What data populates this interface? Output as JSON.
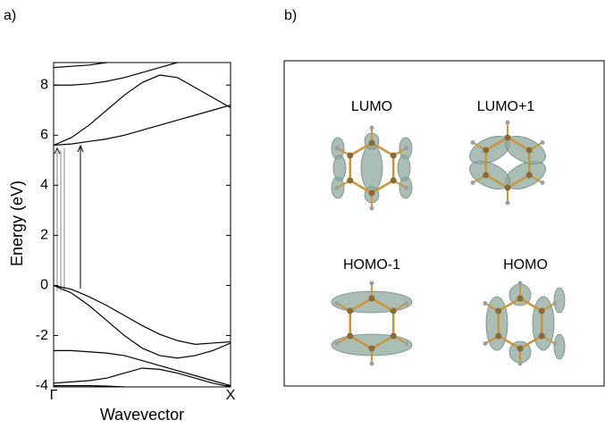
{
  "chart_data": {
    "type": "line",
    "panel_label": "a)",
    "y_label": "Energy (eV)",
    "x_label": "Wavevector",
    "xlim": [
      0,
      1
    ],
    "xticks": [
      {
        "value": 0,
        "label": "Γ"
      },
      {
        "value": 1,
        "label": "X"
      }
    ],
    "ylim": [
      -4.05,
      8.9
    ],
    "yticks": [
      -4,
      -2,
      0,
      2,
      4,
      6,
      8
    ],
    "color": "#000000",
    "x": [
      0,
      0.1,
      0.2,
      0.3,
      0.4,
      0.5,
      0.6,
      0.7,
      0.8,
      0.9,
      1
    ],
    "series": [
      {
        "values": [
          0,
          -0.15,
          -0.45,
          -0.8,
          -1.2,
          -1.6,
          -1.95,
          -2.2,
          -2.35,
          -2.3,
          -2.25
        ]
      },
      {
        "values": [
          0,
          -0.3,
          -0.8,
          -1.4,
          -2.0,
          -2.5,
          -2.8,
          -2.9,
          -2.8,
          -2.6,
          -2.3
        ]
      },
      {
        "values": [
          -2.6,
          -2.6,
          -2.65,
          -2.7,
          -2.8,
          -3.0,
          -3.2,
          -3.4,
          -3.6,
          -3.8,
          -4.0
        ]
      },
      {
        "values": [
          -3.9,
          -3.85,
          -3.8,
          -3.7,
          -3.5,
          -3.3,
          -3.35,
          -3.5,
          -3.7,
          -3.9,
          -4.05
        ]
      },
      {
        "values": [
          -4.0,
          -4.0,
          -4.0,
          -4.02,
          -4.05,
          null,
          null,
          null,
          null,
          null,
          null
        ]
      },
      {
        "values": [
          5.6,
          5.65,
          5.75,
          5.85,
          6.0,
          6.2,
          6.4,
          6.6,
          6.8,
          7.0,
          7.2
        ]
      },
      {
        "values": [
          5.6,
          5.9,
          6.4,
          7.0,
          7.6,
          8.1,
          8.4,
          8.3,
          7.9,
          7.5,
          7.1
        ]
      },
      {
        "values": [
          8.0,
          8.0,
          8.05,
          8.15,
          8.3,
          8.5,
          8.7,
          8.9,
          null,
          null,
          null
        ]
      },
      {
        "values": [
          8.7,
          8.75,
          8.8,
          8.9,
          null,
          null,
          null,
          null,
          null,
          null,
          null
        ]
      }
    ]
  },
  "panel_b": {
    "label": "b)",
    "orbitals": [
      "LUMO",
      "LUMO+1",
      "HOMO-1",
      "HOMO"
    ]
  }
}
